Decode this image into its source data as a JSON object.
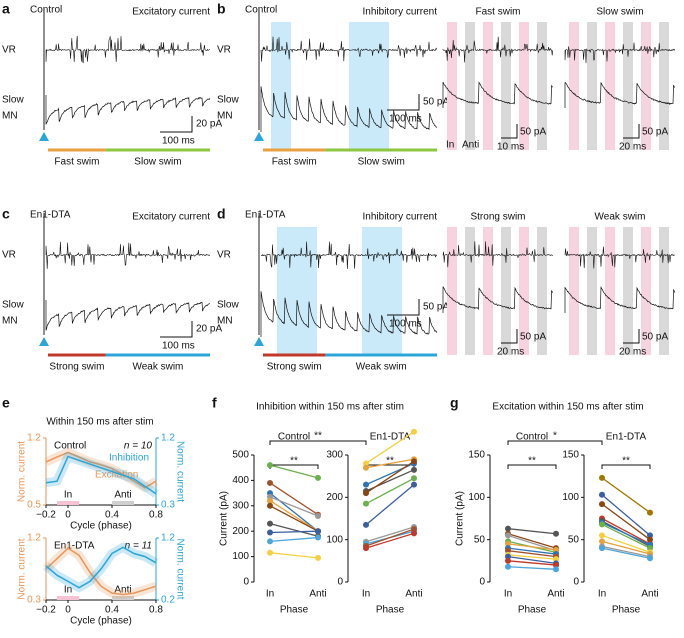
{
  "panels": {
    "a": {
      "letter": "a",
      "label": "Control",
      "title": "Excitatory current",
      "rows": [
        "VR",
        "Slow",
        "MN"
      ],
      "scale": [
        "100 ms",
        "20 pA"
      ],
      "phases": [
        "Fast swim",
        "Slow swim"
      ]
    },
    "b": {
      "letter": "b",
      "label": "Control",
      "title": "Inhibitory current",
      "rows": [
        "VR",
        "Slow",
        "MN"
      ],
      "scale": [
        "100 ms",
        "50 pA"
      ],
      "phases": [
        "Fast swim",
        "Slow swim"
      ],
      "insets": [
        {
          "title": "Fast swim",
          "scale": [
            "10 ms",
            "50 pA"
          ],
          "marks": [
            "In",
            "Anti"
          ]
        },
        {
          "title": "Slow swim",
          "scale": [
            "20 ms",
            "50 pA"
          ]
        }
      ]
    },
    "c": {
      "letter": "c",
      "label": "En1-DTA",
      "title": "Excitatory current",
      "rows": [
        "VR",
        "Slow",
        "MN"
      ],
      "scale": [
        "100 ms",
        "20 pA"
      ],
      "phases": [
        "Strong swim",
        "Weak swim"
      ]
    },
    "d": {
      "letter": "d",
      "label": "En1-DTA",
      "title": "Inhibitory current",
      "rows": [
        "VR",
        "Slow",
        "MN"
      ],
      "scale": [
        "100 ms",
        "50 pA"
      ],
      "phases": [
        "Strong swim",
        "Weak swim"
      ],
      "insets": [
        {
          "title": "Strong swim",
          "scale": [
            "20 ms",
            "50 pA"
          ]
        },
        {
          "title": "Weak swim",
          "scale": [
            "20 ms",
            "50 pA"
          ]
        }
      ]
    },
    "e": {
      "letter": "e",
      "title": "Within 150 ms after stim"
    },
    "f": {
      "letter": "f",
      "title": "Inhibition within 150 ms after stim",
      "sig": "**"
    },
    "g": {
      "letter": "g",
      "title": "Excitation within 150 ms after stim",
      "sig": "*"
    }
  },
  "chart_data": [
    {
      "type": "line",
      "title": "Control",
      "annotation": "n = 10",
      "x": [
        -0.2,
        -0.1,
        0,
        0.1,
        0.2,
        0.3,
        0.4,
        0.5,
        0.6,
        0.7,
        0.8
      ],
      "xlim": [
        -0.2,
        0.8
      ],
      "xticks": [
        {
          "value": -0.2,
          "label": "−0.2"
        },
        0,
        0.4,
        0.8
      ],
      "ylim": [
        0.5,
        1.2
      ],
      "yticks": [
        0.5,
        1.2
      ],
      "y2lim": [
        0.3,
        1.2
      ],
      "y2ticks": [
        0.3,
        1.2
      ],
      "ylabel": "Norm. current",
      "y2label": "Norm. current",
      "xlabel": "Cycle (phase)",
      "phases": [
        "In",
        "Anti"
      ],
      "series": [
        {
          "name": "Excitation",
          "color": "#e8965a",
          "values": [
            0.95,
            1.0,
            1.05,
            1.0,
            0.95,
            0.92,
            0.88,
            0.82,
            0.75,
            0.68,
            0.75
          ]
        },
        {
          "name": "Inhibition",
          "color": "#2ca5d8",
          "axis": "y2",
          "values": [
            0.6,
            0.62,
            0.95,
            0.9,
            0.85,
            0.8,
            0.75,
            0.7,
            0.65,
            0.55,
            0.45
          ]
        }
      ]
    },
    {
      "type": "line",
      "title": "En1-DTA",
      "annotation": "n = 11",
      "x": [
        -0.2,
        -0.1,
        0,
        0.1,
        0.2,
        0.3,
        0.4,
        0.5,
        0.6,
        0.7,
        0.8
      ],
      "xlim": [
        -0.2,
        0.8
      ],
      "xticks": [
        {
          "value": -0.2,
          "label": "−0.2"
        },
        0,
        0.4,
        0.8
      ],
      "ylim": [
        0.3,
        1.2
      ],
      "yticks": [
        0.3,
        1.2
      ],
      "y2lim": [
        0.2,
        1.2
      ],
      "y2ticks": [
        0.2,
        1.2
      ],
      "ylabel": "Norm. current",
      "y2label": "Norm. current",
      "xlabel": "Cycle (phase)",
      "phases": [
        "In",
        "Anti"
      ],
      "series": [
        {
          "color": "#e8965a",
          "values": [
            0.75,
            0.9,
            1.05,
            0.95,
            0.7,
            0.5,
            0.4,
            0.38,
            0.4,
            0.45,
            0.5
          ]
        },
        {
          "color": "#2ca5d8",
          "axis": "y2",
          "values": [
            0.75,
            0.6,
            0.5,
            0.4,
            0.5,
            0.7,
            0.95,
            1.05,
            0.95,
            0.9,
            0.8
          ]
        }
      ]
    },
    {
      "type": "paired",
      "title": "Control",
      "categories": [
        "In",
        "Anti"
      ],
      "ylim": [
        0,
        500
      ],
      "yticks": [
        0,
        100,
        200,
        300,
        400,
        500
      ],
      "ylabel": "Current (pA)",
      "xlabel": "Phase",
      "sig": "**",
      "series": [
        {
          "color": "#6ab04c",
          "values": [
            460,
            410
          ]
        },
        {
          "color": "#a0522d",
          "values": [
            390,
            265
          ]
        },
        {
          "color": "#2e75b6",
          "values": [
            350,
            200
          ]
        },
        {
          "color": "#999999",
          "values": [
            335,
            260
          ]
        },
        {
          "color": "#e6a23c",
          "values": [
            320,
            200
          ]
        },
        {
          "color": "#8b4513",
          "values": [
            300,
            200
          ]
        },
        {
          "color": "#555555",
          "values": [
            230,
            180
          ]
        },
        {
          "color": "#3b5fa0",
          "values": [
            195,
            200
          ]
        },
        {
          "color": "#4da6d9",
          "values": [
            160,
            175
          ]
        },
        {
          "color": "#f4d03f",
          "values": [
            115,
            95
          ]
        }
      ]
    },
    {
      "type": "paired",
      "title": "En1-DTA",
      "categories": [
        "In",
        "Anti"
      ],
      "ylim": [
        0,
        300
      ],
      "yticks": [
        0,
        100,
        200,
        300
      ],
      "xlabel": "Phase",
      "sig": "**",
      "series": [
        {
          "color": "#f4d03f",
          "values": [
            280,
            355
          ]
        },
        {
          "color": "#e6a23c",
          "values": [
            270,
            290
          ]
        },
        {
          "color": "#2e75b6",
          "values": [
            230,
            280
          ]
        },
        {
          "color": "#555555",
          "values": [
            215,
            265
          ]
        },
        {
          "color": "#8b4513",
          "values": [
            210,
            285
          ]
        },
        {
          "color": "#6ab04c",
          "values": [
            185,
            245
          ]
        },
        {
          "color": "#3b5fa0",
          "values": [
            135,
            230
          ]
        },
        {
          "color": "#999999",
          "values": [
            95,
            130
          ]
        },
        {
          "color": "#4da6d9",
          "values": [
            90,
            120
          ]
        },
        {
          "color": "#a0522d",
          "values": [
            85,
            125
          ]
        },
        {
          "color": "#c0392b",
          "values": [
            80,
            115
          ]
        }
      ]
    },
    {
      "type": "paired",
      "title": "Control",
      "categories": [
        "In",
        "Anti"
      ],
      "ylim": [
        0,
        150
      ],
      "yticks": [
        0,
        50,
        100,
        150
      ],
      "ylabel": "Current (pA)",
      "xlabel": "Phase",
      "sig": "**",
      "series": [
        {
          "color": "#555555",
          "values": [
            63,
            57
          ]
        },
        {
          "color": "#8b4513",
          "values": [
            57,
            40
          ]
        },
        {
          "color": "#999999",
          "values": [
            55,
            37
          ]
        },
        {
          "color": "#6ab04c",
          "values": [
            48,
            35
          ]
        },
        {
          "color": "#e6a23c",
          "values": [
            45,
            38
          ]
        },
        {
          "color": "#2e75b6",
          "values": [
            40,
            33
          ]
        },
        {
          "color": "#a0522d",
          "values": [
            37,
            30
          ]
        },
        {
          "color": "#f4d03f",
          "values": [
            32,
            27
          ]
        },
        {
          "color": "#3b5fa0",
          "values": [
            30,
            22
          ]
        },
        {
          "color": "#c0392b",
          "values": [
            25,
            20
          ]
        },
        {
          "color": "#4da6d9",
          "values": [
            18,
            15
          ]
        }
      ]
    },
    {
      "type": "paired",
      "title": "En1-DTA",
      "categories": [
        "In",
        "Anti"
      ],
      "ylim": [
        0,
        150
      ],
      "yticks": [
        0,
        50,
        100,
        150
      ],
      "xlabel": "Phase",
      "sig": "**",
      "series": [
        {
          "color": "#a07800",
          "values": [
            123,
            82
          ]
        },
        {
          "color": "#3b5fa0",
          "values": [
            103,
            55
          ]
        },
        {
          "color": "#8b4513",
          "values": [
            92,
            50
          ]
        },
        {
          "color": "#c0392b",
          "values": [
            75,
            45
          ]
        },
        {
          "color": "#555555",
          "values": [
            72,
            42
          ]
        },
        {
          "color": "#2e75b6",
          "values": [
            70,
            44
          ]
        },
        {
          "color": "#6ab04c",
          "values": [
            68,
            40
          ]
        },
        {
          "color": "#f4d03f",
          "values": [
            55,
            35
          ]
        },
        {
          "color": "#e6a23c",
          "values": [
            48,
            33
          ]
        },
        {
          "color": "#999999",
          "values": [
            42,
            30
          ]
        },
        {
          "color": "#4da6d9",
          "values": [
            40,
            28
          ]
        }
      ]
    }
  ]
}
